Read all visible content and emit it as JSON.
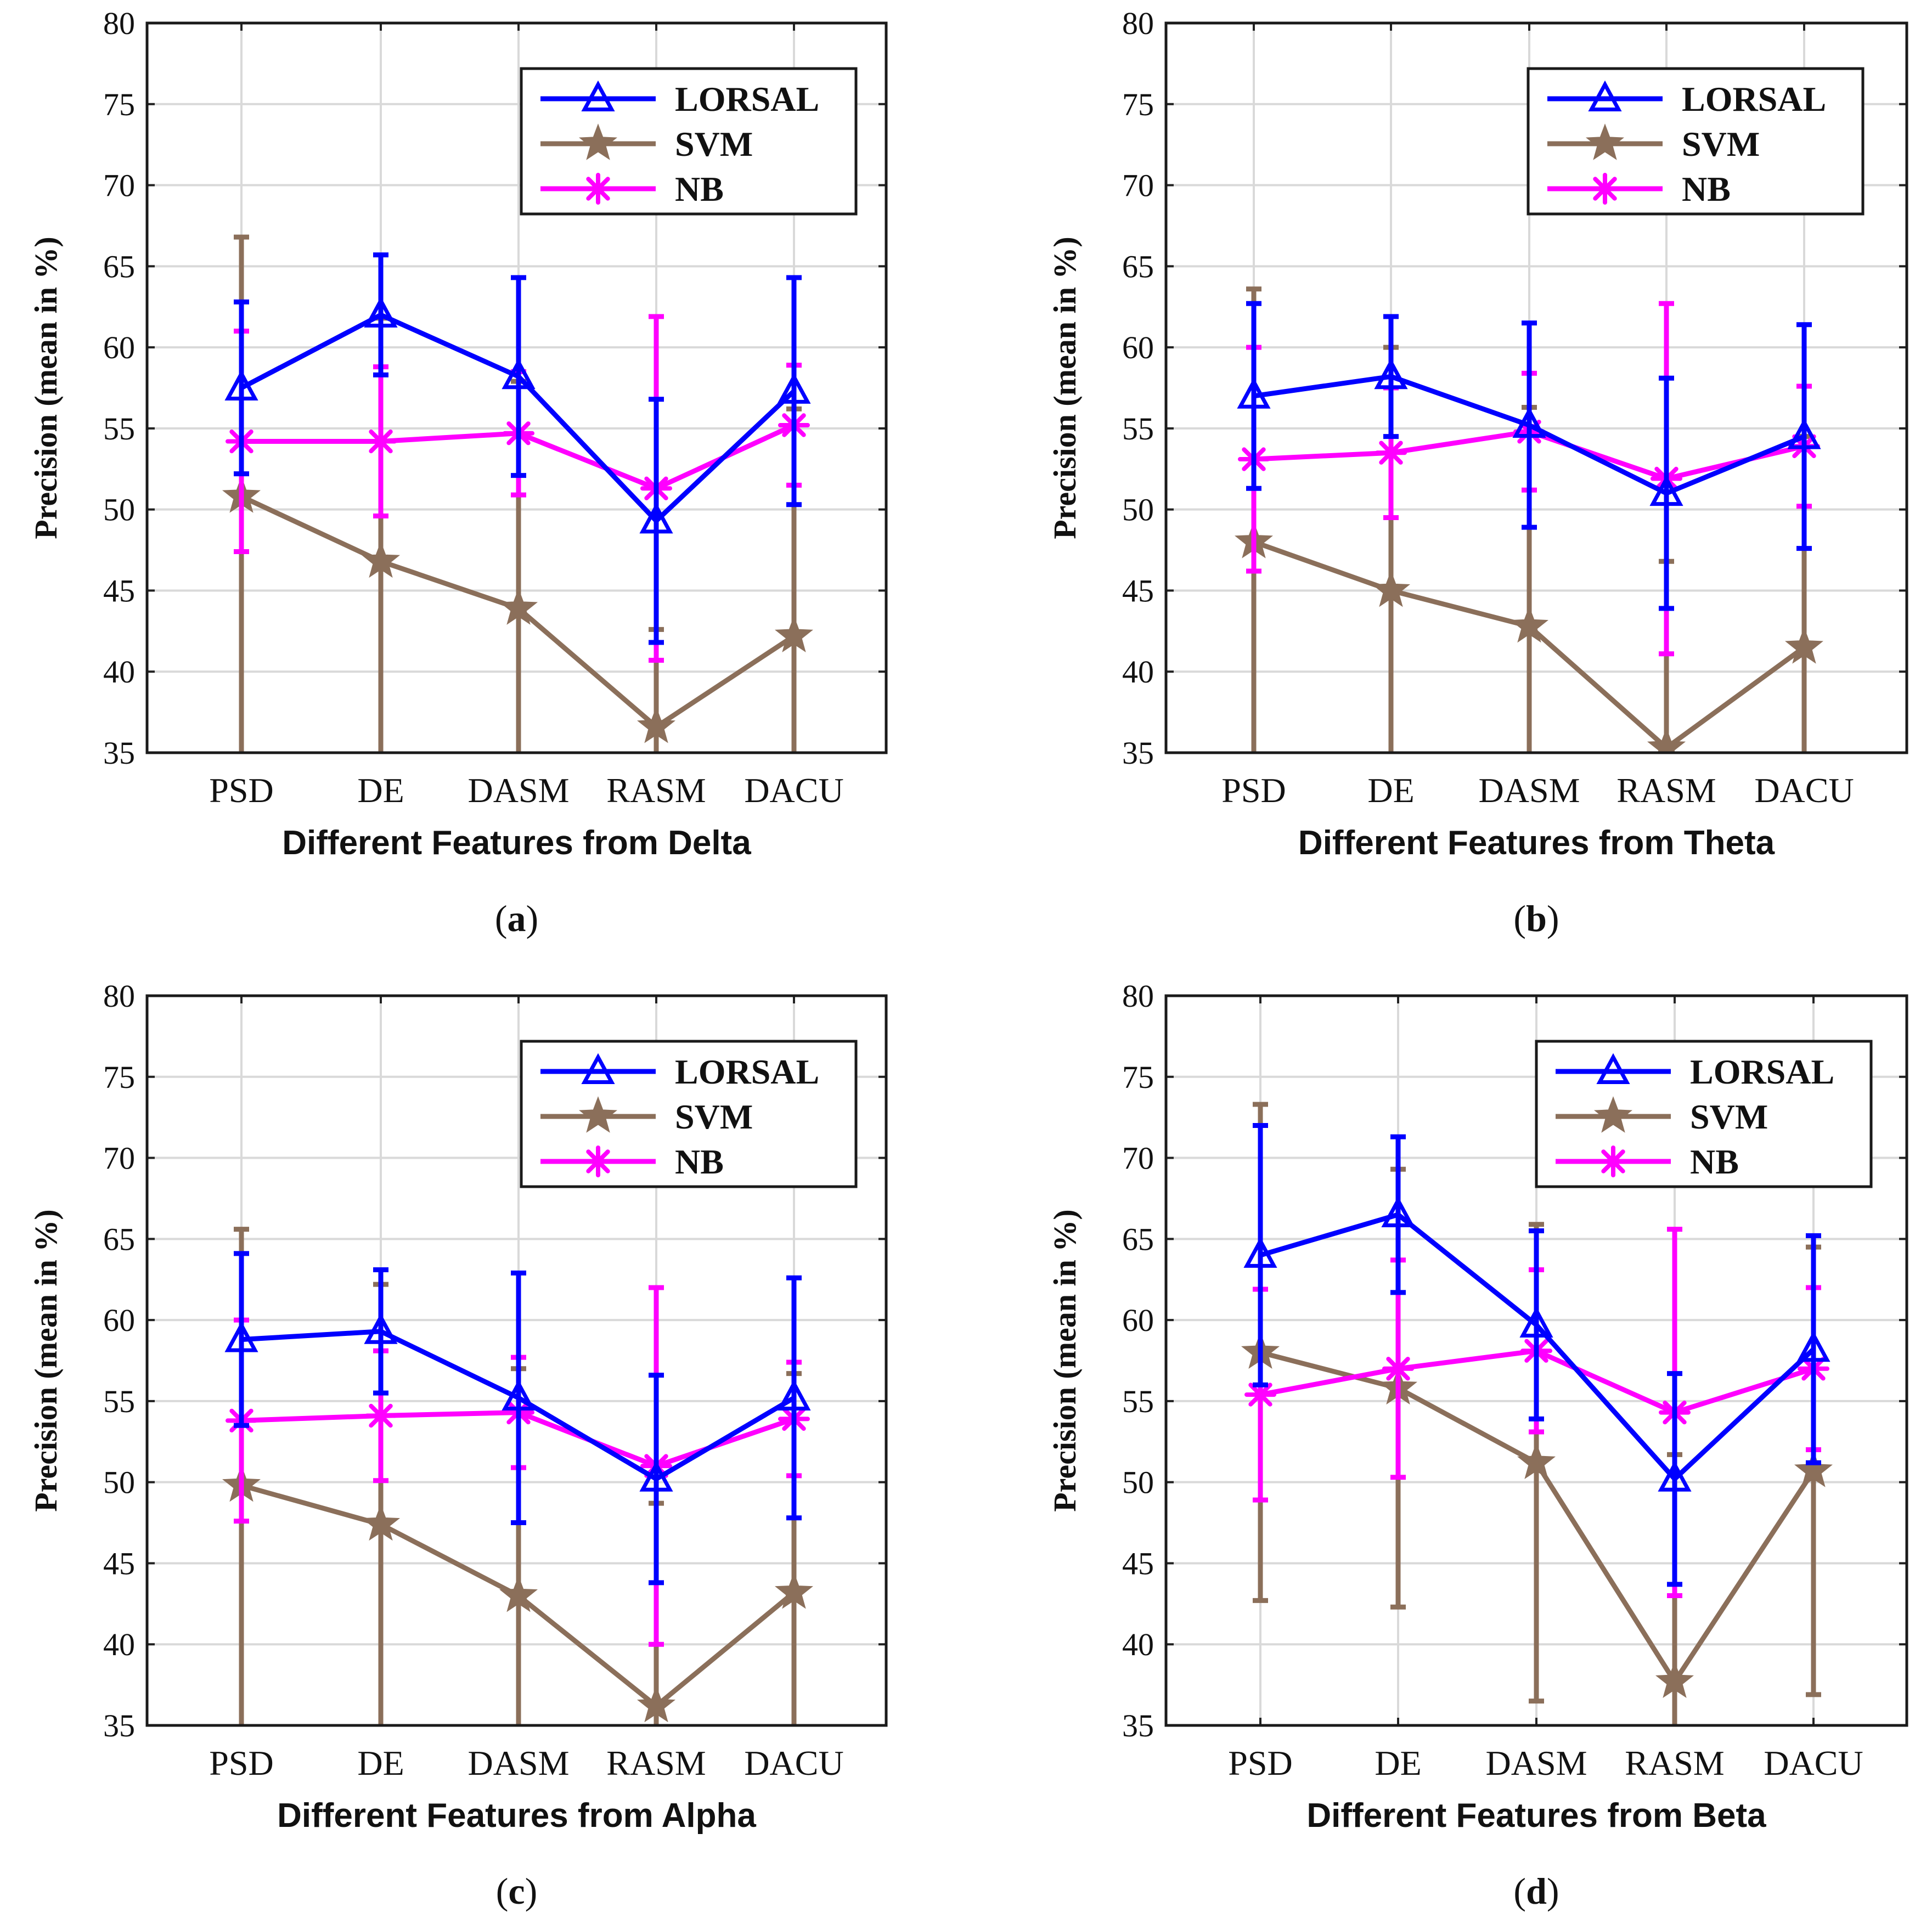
{
  "chart_data": [
    {
      "type": "line",
      "panel": "a",
      "title": "",
      "xlabel": "Different Features from Delta",
      "ylabel": "Precision (mean in %)",
      "caption": "(a)",
      "caption_letter": "a",
      "categories": [
        "PSD",
        "DE",
        "DASM",
        "RASM",
        "DACU"
      ],
      "ylim": [
        35,
        80
      ],
      "yticks": [
        35,
        40,
        45,
        50,
        55,
        60,
        65,
        70,
        75,
        80
      ],
      "grid": true,
      "legend": "top-right",
      "series": [
        {
          "name": "LORSAL",
          "color": "#0000ff",
          "marker": "triangle",
          "values": [
            57.5,
            62.0,
            58.2,
            49.3,
            57.3
          ],
          "errors": [
            5.3,
            3.7,
            6.1,
            7.5,
            7.0
          ]
        },
        {
          "name": "SVM",
          "color": "#8b6f5a",
          "marker": "star",
          "values": [
            50.8,
            46.8,
            43.9,
            36.6,
            42.2
          ],
          "errors": [
            16.0,
            15.0,
            14.0,
            6.0,
            14.0
          ]
        },
        {
          "name": "NB",
          "color": "#ff00ff",
          "marker": "asterisk",
          "values": [
            54.2,
            54.2,
            54.7,
            51.3,
            55.2
          ],
          "errors": [
            6.8,
            4.6,
            3.8,
            10.6,
            3.7
          ]
        }
      ]
    },
    {
      "type": "line",
      "panel": "b",
      "title": "",
      "xlabel": "Different Features from Theta",
      "ylabel": "Precision (mean in %)",
      "caption": "(b)",
      "caption_letter": "b",
      "categories": [
        "PSD",
        "DE",
        "DASM",
        "RASM",
        "DACU"
      ],
      "ylim": [
        35,
        80
      ],
      "yticks": [
        35,
        40,
        45,
        50,
        55,
        60,
        65,
        70,
        75,
        80
      ],
      "grid": true,
      "legend": "top-right",
      "series": [
        {
          "name": "LORSAL",
          "color": "#0000ff",
          "marker": "triangle",
          "values": [
            57.0,
            58.2,
            55.2,
            51.0,
            54.5
          ],
          "errors": [
            5.7,
            3.7,
            6.3,
            7.1,
            6.9
          ]
        },
        {
          "name": "SVM",
          "color": "#8b6f5a",
          "marker": "star",
          "values": [
            48.0,
            45.0,
            42.8,
            35.3,
            41.5
          ],
          "errors": [
            15.6,
            15.0,
            13.5,
            11.5,
            13.0
          ]
        },
        {
          "name": "NB",
          "color": "#ff00ff",
          "marker": "asterisk",
          "values": [
            53.1,
            53.5,
            54.8,
            51.9,
            53.9
          ],
          "errors": [
            6.9,
            4.0,
            3.6,
            10.8,
            3.7
          ]
        }
      ]
    },
    {
      "type": "line",
      "panel": "c",
      "title": "",
      "xlabel": "Different Features from Alpha",
      "ylabel": "Precision (mean in %)",
      "caption": "(c)",
      "caption_letter": "c",
      "categories": [
        "PSD",
        "DE",
        "DASM",
        "RASM",
        "DACU"
      ],
      "ylim": [
        35,
        80
      ],
      "yticks": [
        35,
        40,
        45,
        50,
        55,
        60,
        65,
        70,
        75,
        80
      ],
      "grid": true,
      "legend": "top-right",
      "series": [
        {
          "name": "LORSAL",
          "color": "#0000ff",
          "marker": "triangle",
          "values": [
            58.8,
            59.3,
            55.2,
            50.2,
            55.2
          ],
          "errors": [
            5.3,
            3.8,
            7.7,
            6.4,
            7.4
          ]
        },
        {
          "name": "SVM",
          "color": "#8b6f5a",
          "marker": "star",
          "values": [
            49.8,
            47.4,
            43.0,
            36.2,
            43.2
          ],
          "errors": [
            15.8,
            14.8,
            14.0,
            12.5,
            13.5
          ]
        },
        {
          "name": "NB",
          "color": "#ff00ff",
          "marker": "asterisk",
          "values": [
            53.8,
            54.1,
            54.3,
            51.0,
            53.9
          ],
          "errors": [
            6.2,
            4.0,
            3.4,
            11.0,
            3.5
          ]
        }
      ]
    },
    {
      "type": "line",
      "panel": "d",
      "title": "",
      "xlabel": "Different Features from Beta",
      "ylabel": "Precision (mean in %)",
      "caption": "(d)",
      "caption_letter": "d",
      "categories": [
        "PSD",
        "DE",
        "DASM",
        "RASM",
        "DACU"
      ],
      "ylim": [
        35,
        80
      ],
      "yticks": [
        35,
        40,
        45,
        50,
        55,
        60,
        65,
        70,
        75,
        80
      ],
      "grid": true,
      "legend": "top-right",
      "series": [
        {
          "name": "LORSAL",
          "color": "#0000ff",
          "marker": "triangle",
          "values": [
            64.0,
            66.5,
            59.7,
            50.2,
            58.2
          ],
          "errors": [
            8.0,
            4.8,
            5.8,
            6.5,
            7.0
          ]
        },
        {
          "name": "SVM",
          "color": "#8b6f5a",
          "marker": "star",
          "values": [
            58.0,
            55.8,
            51.2,
            37.7,
            50.7
          ],
          "errors": [
            15.3,
            13.5,
            14.7,
            14.0,
            13.8
          ]
        },
        {
          "name": "NB",
          "color": "#ff00ff",
          "marker": "asterisk",
          "values": [
            55.4,
            57.0,
            58.1,
            54.3,
            57.0
          ],
          "errors": [
            6.5,
            6.7,
            5.0,
            11.3,
            5.0
          ]
        }
      ]
    }
  ]
}
